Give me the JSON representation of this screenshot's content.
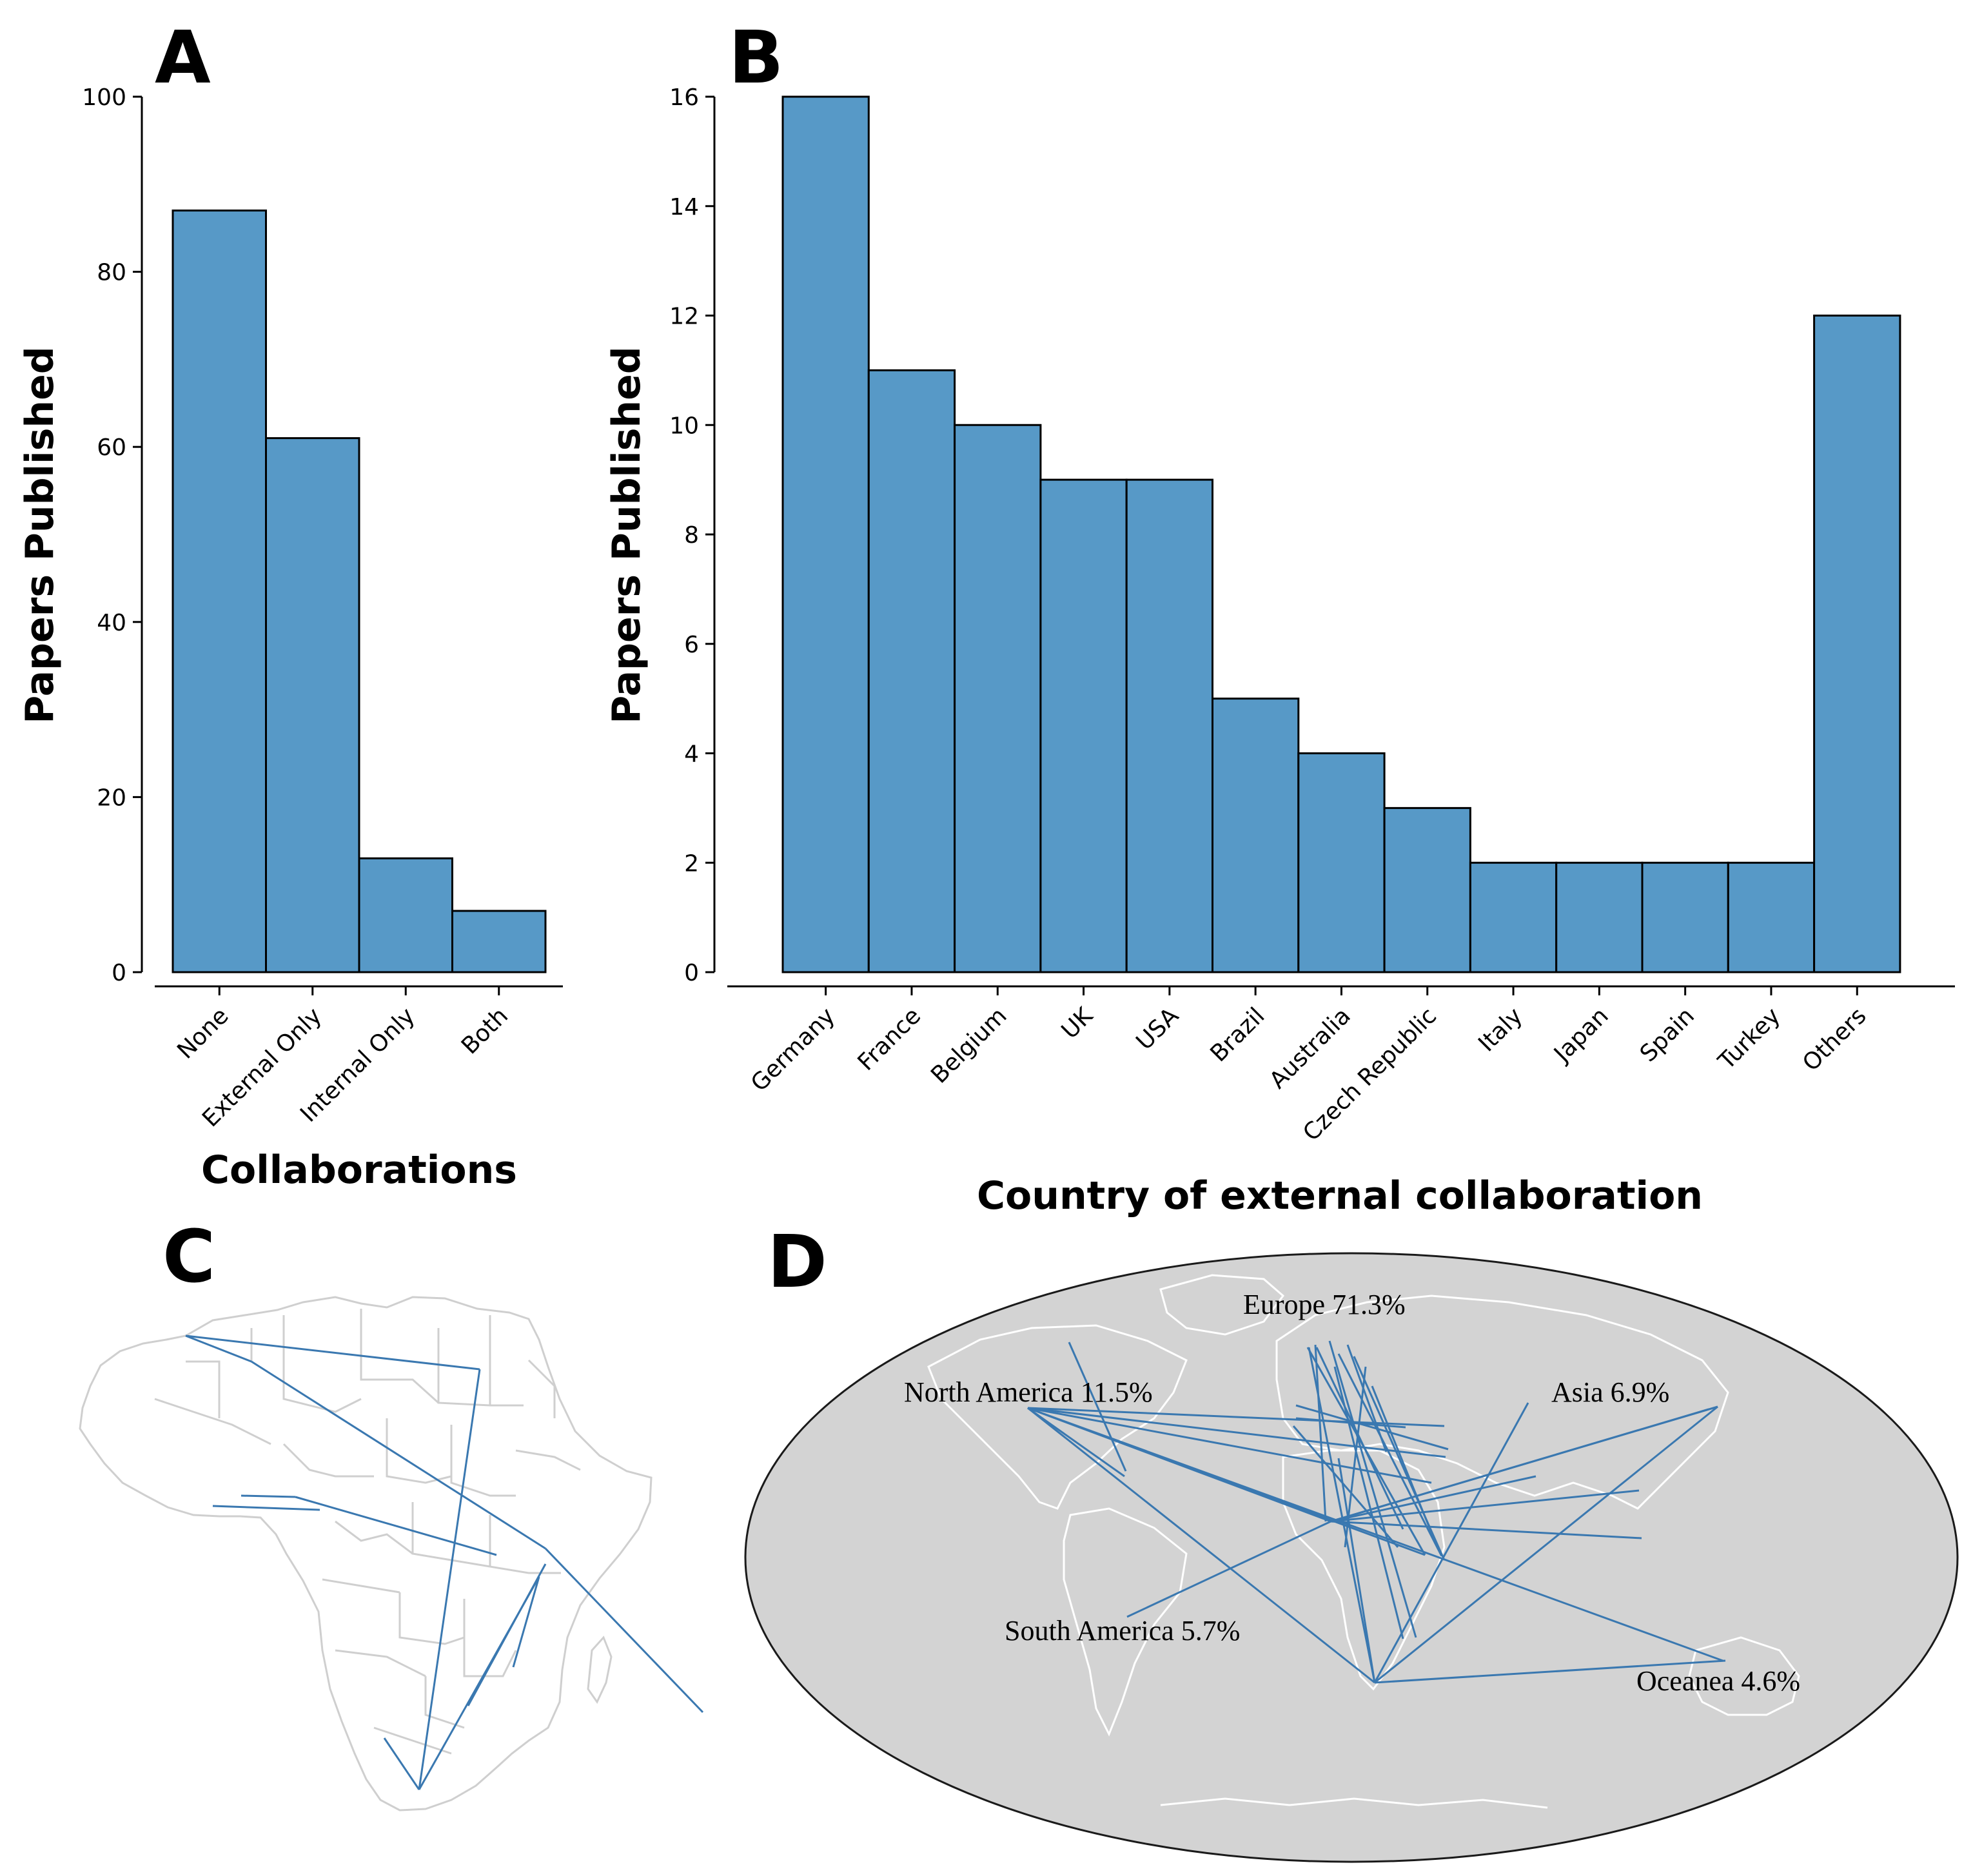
{
  "panels": {
    "a": "A",
    "b": "B",
    "c": "C",
    "d": "D"
  },
  "colors": {
    "bar_fill": "#5799c7",
    "link": "#3a78b0",
    "ocean": "#d3d3d3",
    "africa_borders": "#cfcfcf"
  },
  "chart_data": [
    {
      "panel": "A",
      "type": "bar",
      "categories": [
        "None",
        "External Only",
        "Internal Only",
        "Both"
      ],
      "values": [
        87,
        61,
        13,
        7
      ],
      "xlabel": "Collaborations",
      "ylabel": "Papers Published",
      "ylim": [
        0,
        100
      ],
      "yticks": [
        0,
        20,
        40,
        60,
        80,
        100
      ],
      "grid": false
    },
    {
      "panel": "B",
      "type": "bar",
      "categories": [
        "Germany",
        "France",
        "Belgium",
        "UK",
        "USA",
        "Brazil",
        "Australia",
        "Czech Republic",
        "Italy",
        "Japan",
        "Spain",
        "Turkey",
        "Others"
      ],
      "values": [
        16,
        11,
        10,
        9,
        9,
        5,
        4,
        3,
        2,
        2,
        2,
        2,
        12
      ],
      "xlabel": "Country of external collaboration",
      "ylabel": "Papers Published",
      "ylim": [
        0,
        16
      ],
      "yticks": [
        0,
        2,
        4,
        6,
        8,
        10,
        12,
        14,
        16
      ],
      "grid": false
    }
  ],
  "map_d": {
    "labels": {
      "europe": "Europe 71.3%",
      "north_america": "North America 11.5%",
      "asia": "Asia 6.9%",
      "south_america": "South America 5.7%",
      "oceania": "Oceanea 4.6%"
    }
  }
}
